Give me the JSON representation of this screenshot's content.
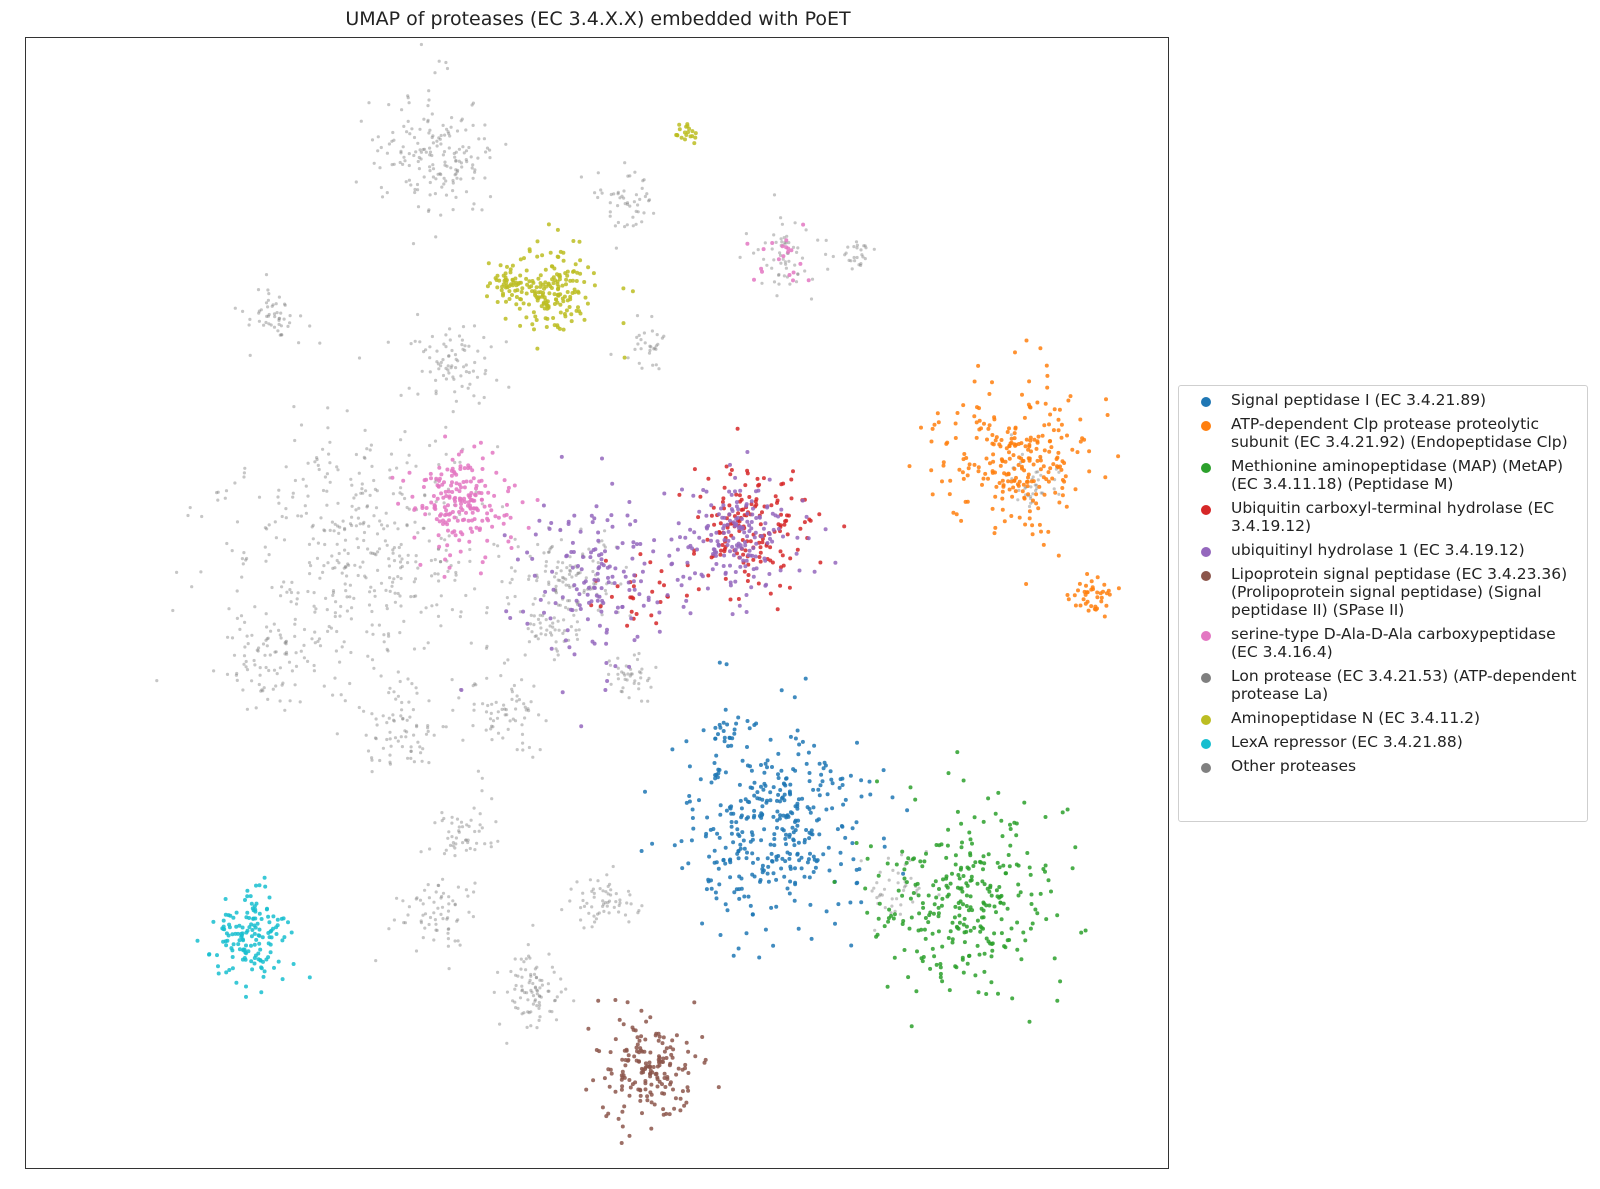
{
  "chart_data": {
    "type": "scatter",
    "title": "UMAP of proteases (EC 3.4.X.X) embedded with PoET",
    "xlabel": "",
    "ylabel": "",
    "axes_visible": false,
    "grid": false,
    "legend_position": "right-outside",
    "xlim": [
      0,
      100
    ],
    "ylim": [
      0,
      100
    ],
    "series": [
      {
        "name": "Signal peptidase I (EC 3.4.21.89)",
        "color": "#1f77b4",
        "clusters": [
          {
            "x": 65.5,
            "y": 30.5,
            "spread": 4.5,
            "n": 380
          },
          {
            "x": 61.5,
            "y": 38.5,
            "spread": 0.8,
            "n": 20
          }
        ]
      },
      {
        "name": "ATP-dependent Clp protease proteolytic subunit (EC 3.4.21.92) (Endopeptidase Clp)",
        "color": "#ff7f0e",
        "clusters": [
          {
            "x": 86.5,
            "y": 62.5,
            "spread": 3.5,
            "n": 260
          },
          {
            "x": 93.5,
            "y": 50.5,
            "spread": 1.0,
            "n": 40
          }
        ]
      },
      {
        "name": "Methionine aminopeptidase (MAP) (MetAP) (EC 3.4.11.18) (Peptidase M)",
        "color": "#2ca02c",
        "clusters": [
          {
            "x": 82.5,
            "y": 23.5,
            "spread": 4.5,
            "n": 300
          }
        ]
      },
      {
        "name": "Ubiquitin carboxyl-terminal hydrolase (EC 3.4.19.12)",
        "color": "#d62728",
        "clusters": [
          {
            "x": 63.0,
            "y": 56.5,
            "spread": 3.0,
            "n": 160
          },
          {
            "x": 54.0,
            "y": 51.0,
            "spread": 2.0,
            "n": 30
          }
        ]
      },
      {
        "name": "ubiquitinyl hydrolase 1 (EC 3.4.19.12)",
        "color": "#9467bd",
        "clusters": [
          {
            "x": 62.5,
            "y": 56.0,
            "spread": 3.0,
            "n": 180
          },
          {
            "x": 50.0,
            "y": 52.0,
            "spread": 4.0,
            "n": 160
          }
        ]
      },
      {
        "name": "Lipoprotein signal peptidase (EC 3.4.23.36) (Prolipoprotein signal peptidase) (Signal peptidase II) (SPase II)",
        "color": "#8c564b",
        "clusters": [
          {
            "x": 54.5,
            "y": 8.5,
            "spread": 2.5,
            "n": 180
          }
        ]
      },
      {
        "name": "serine-type D-Ala-D-Ala carboxypeptidase (EC 3.4.16.4)",
        "color": "#e377c2",
        "clusters": [
          {
            "x": 38.0,
            "y": 59.0,
            "spread": 2.5,
            "n": 200
          },
          {
            "x": 66.5,
            "y": 80.5,
            "spread": 1.5,
            "n": 20
          }
        ]
      },
      {
        "name": "Lon protease (EC 3.4.21.53) (ATP-dependent protease La)",
        "color": "#7f7f7f",
        "clusters": []
      },
      {
        "name": "Aminopeptidase N (EC 3.4.11.2)",
        "color": "#bcbd22",
        "clusters": [
          {
            "x": 46.0,
            "y": 77.5,
            "spread": 2.2,
            "n": 180
          },
          {
            "x": 42.0,
            "y": 78.5,
            "spread": 1.0,
            "n": 40
          },
          {
            "x": 58.0,
            "y": 91.5,
            "spread": 0.6,
            "n": 20
          }
        ]
      },
      {
        "name": "LexA repressor (EC 3.4.21.88)",
        "color": "#17becf",
        "clusters": [
          {
            "x": 19.5,
            "y": 20.5,
            "spread": 2.0,
            "n": 150
          }
        ]
      },
      {
        "name": "Other proteases",
        "color": "#808080",
        "clusters": [
          {
            "x": 36.0,
            "y": 90.0,
            "spread": 3.0,
            "n": 180
          },
          {
            "x": 29.0,
            "y": 54.5,
            "spread": 6.5,
            "n": 420
          },
          {
            "x": 21.5,
            "y": 45.0,
            "spread": 2.5,
            "n": 90
          },
          {
            "x": 37.5,
            "y": 71.0,
            "spread": 2.0,
            "n": 80
          },
          {
            "x": 21.5,
            "y": 75.5,
            "spread": 1.2,
            "n": 50
          },
          {
            "x": 53.0,
            "y": 86.0,
            "spread": 1.5,
            "n": 50
          },
          {
            "x": 66.5,
            "y": 81.0,
            "spread": 1.5,
            "n": 60
          },
          {
            "x": 47.5,
            "y": 52.0,
            "spread": 2.5,
            "n": 120
          },
          {
            "x": 33.0,
            "y": 38.5,
            "spread": 2.0,
            "n": 70
          },
          {
            "x": 42.0,
            "y": 40.0,
            "spread": 2.0,
            "n": 70
          },
          {
            "x": 38.5,
            "y": 29.5,
            "spread": 1.5,
            "n": 50
          },
          {
            "x": 36.0,
            "y": 22.5,
            "spread": 2.0,
            "n": 70
          },
          {
            "x": 50.5,
            "y": 23.5,
            "spread": 1.5,
            "n": 60
          },
          {
            "x": 44.5,
            "y": 15.5,
            "spread": 1.5,
            "n": 90
          },
          {
            "x": 53.0,
            "y": 43.5,
            "spread": 1.2,
            "n": 40
          },
          {
            "x": 54.5,
            "y": 73.0,
            "spread": 1.2,
            "n": 30
          },
          {
            "x": 72.5,
            "y": 81.0,
            "spread": 0.8,
            "n": 25
          },
          {
            "x": 88.5,
            "y": 60.5,
            "spread": 1.2,
            "n": 40
          },
          {
            "x": 76.5,
            "y": 24.5,
            "spread": 1.5,
            "n": 40
          },
          {
            "x": 46.0,
            "y": 47.5,
            "spread": 1.5,
            "n": 40
          }
        ]
      }
    ]
  }
}
